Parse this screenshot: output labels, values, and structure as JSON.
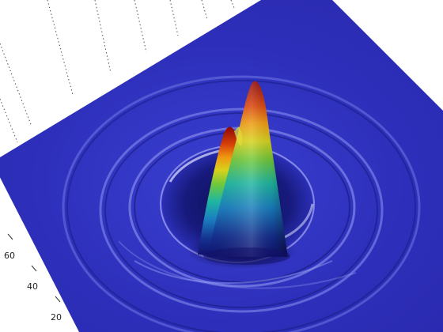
{
  "chart_data": {
    "type": "surface3d",
    "title": "",
    "xlabel": "",
    "ylabel": "",
    "zlabel": "",
    "y_ticks": [
      "20",
      "40",
      "60"
    ],
    "grid": true,
    "colormap": "jet",
    "features": {
      "main_peak_height_fraction": 1.0,
      "secondary_peak_height_fraction": 0.62,
      "ring_ripples": 3
    }
  }
}
